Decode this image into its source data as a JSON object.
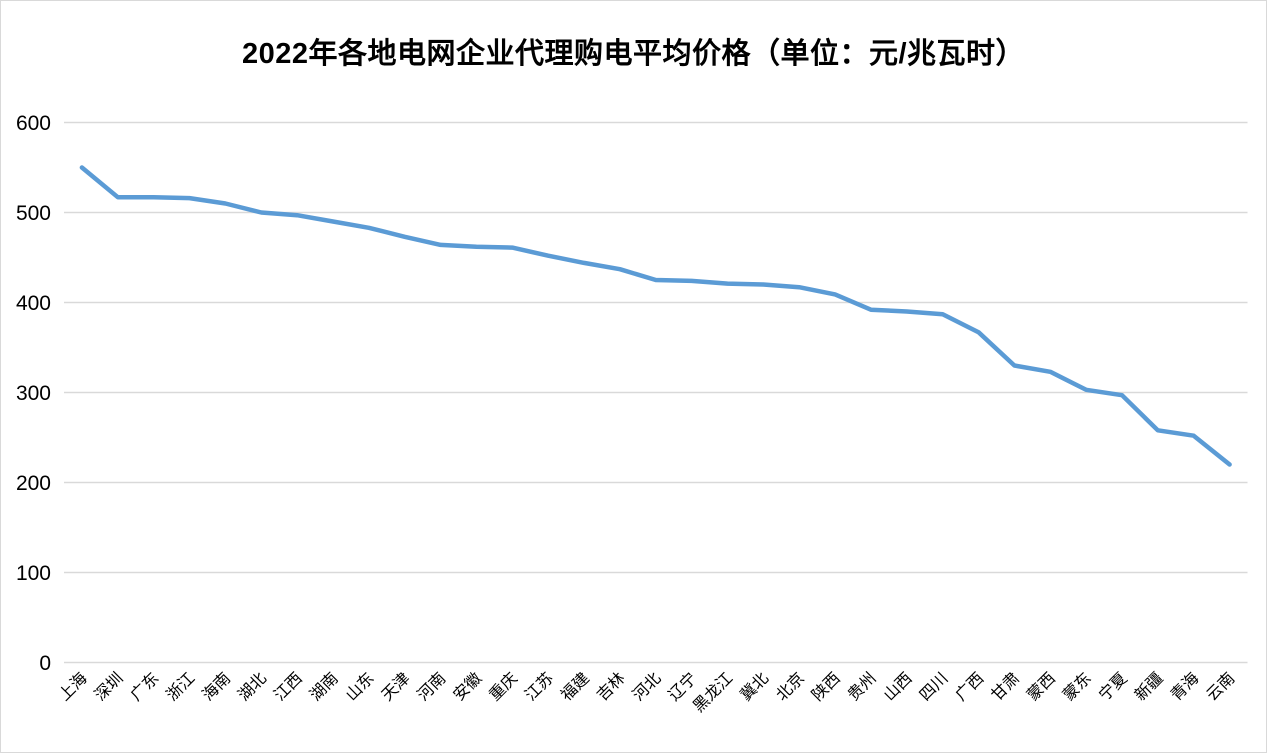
{
  "page": {
    "background_color": "#ffffff",
    "border_color": "#d9d9d9"
  },
  "colors": {
    "line": "#5B9BD5",
    "gridline": "#D9D9D9",
    "text": "#000000"
  },
  "chart_data": {
    "type": "line",
    "title": "2022年各地电网企业代理购电平均价格（单位：元/兆瓦时）",
    "categories": [
      "上海",
      "深圳",
      "广东",
      "浙江",
      "海南",
      "湖北",
      "江西",
      "湖南",
      "山东",
      "天津",
      "河南",
      "安徽",
      "重庆",
      "江苏",
      "福建",
      "吉林",
      "河北",
      "辽宁",
      "黑龙江",
      "冀北",
      "北京",
      "陕西",
      "贵州",
      "山西",
      "四川",
      "广西",
      "甘肃",
      "蒙西",
      "蒙东",
      "宁夏",
      "新疆",
      "青海",
      "云南"
    ],
    "values": [
      550,
      517,
      517,
      516,
      510,
      500,
      497,
      490,
      483,
      473,
      464,
      462,
      461,
      452,
      444,
      437,
      425,
      424,
      421,
      420,
      417,
      409,
      392,
      390,
      387,
      367,
      330,
      323,
      303,
      297,
      258,
      252,
      220
    ],
    "xlabel": "",
    "ylabel": "",
    "ylim": [
      0,
      600
    ],
    "yticks": [
      0,
      100,
      200,
      300,
      400,
      500,
      600
    ],
    "grid": "horizontal",
    "legend": "none",
    "markers": "none",
    "x_label_rotation": 45
  }
}
